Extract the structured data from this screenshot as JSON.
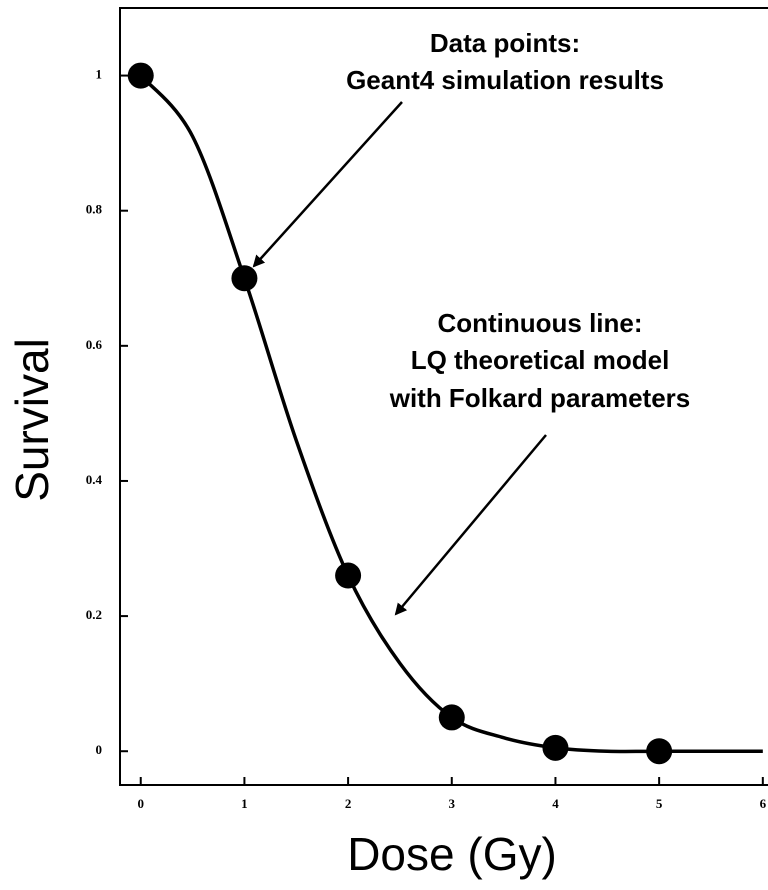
{
  "chart_data": {
    "type": "scatter",
    "xlabel": "Dose (Gy)",
    "ylabel": "Survival",
    "series": [
      {
        "name": null,
        "kind": "points",
        "color": "#000000",
        "x": [
          0,
          1,
          2,
          3,
          4,
          5
        ],
        "values": [
          1,
          0.7,
          0.26,
          0.05,
          0.005,
          0
        ]
      },
      {
        "name": null,
        "kind": "line",
        "color": "#000000",
        "x": [
          0,
          0.5,
          1,
          1.5,
          2,
          2.5,
          3,
          3.5,
          4,
          4.5,
          5,
          5.5,
          6
        ],
        "values": [
          1,
          0.91,
          0.7,
          0.46,
          0.26,
          0.13,
          0.05,
          0.02,
          0.005,
          0,
          0,
          0,
          0
        ]
      }
    ],
    "annotations": [
      [
        "Data points:",
        "Geant4 simulation results"
      ],
      [
        "Continuous line:",
        "LQ theoretical model",
        "with Folkard parameters"
      ]
    ],
    "xlim": [
      -0.2,
      6.05
    ],
    "ylim": [
      -0.05,
      1.1
    ],
    "xticks": [
      0,
      1,
      2,
      3,
      4,
      5,
      6
    ],
    "yticks": [
      0,
      0.2,
      0.4,
      0.6,
      0.8,
      1
    ],
    "grid": false
  }
}
